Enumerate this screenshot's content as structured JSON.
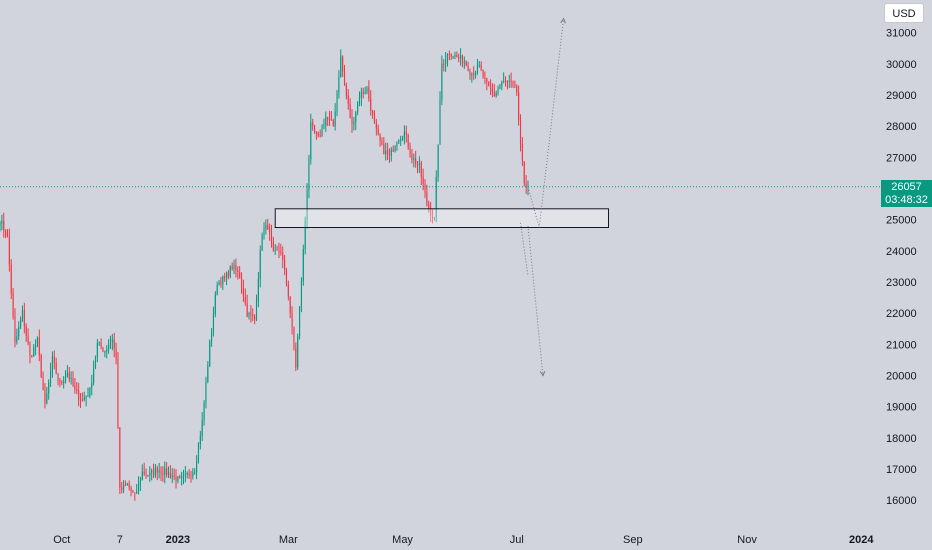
{
  "chart_data": {
    "type": "candlestick",
    "currency": "USD",
    "y_ticks": [
      31000,
      30000,
      29000,
      28000,
      27000,
      26000,
      25000,
      24000,
      23000,
      22000,
      21000,
      20000,
      19000,
      18000,
      17000,
      16000
    ],
    "y_range": [
      15300,
      32050
    ],
    "x_labels": [
      {
        "label": "Oct",
        "bold": false,
        "day": 33
      },
      {
        "label": "7",
        "bold": false,
        "day": 64
      },
      {
        "label": "2023",
        "bold": true,
        "day": 95
      },
      {
        "label": "Mar",
        "bold": false,
        "day": 154
      },
      {
        "label": "May",
        "bold": false,
        "day": 215
      },
      {
        "label": "Jul",
        "bold": false,
        "day": 276
      },
      {
        "label": "Sep",
        "bold": false,
        "day": 338
      },
      {
        "label": "Nov",
        "bold": false,
        "day": 399
      },
      {
        "label": "2024",
        "bold": true,
        "day": 460
      }
    ],
    "x_range": [
      0,
      470
    ],
    "last_price": {
      "value": 26057,
      "label": "26057",
      "countdown": "03:48:32"
    },
    "up_color": "#089981",
    "down_color": "#f23645",
    "key_points": [
      [
        0,
        25000
      ],
      [
        4,
        24400
      ],
      [
        8,
        21000
      ],
      [
        12,
        22000
      ],
      [
        16,
        20600
      ],
      [
        20,
        21100
      ],
      [
        24,
        19000
      ],
      [
        28,
        20500
      ],
      [
        32,
        19700
      ],
      [
        36,
        20100
      ],
      [
        40,
        19500
      ],
      [
        44,
        19200
      ],
      [
        48,
        19500
      ],
      [
        52,
        21000
      ],
      [
        56,
        20800
      ],
      [
        60,
        21200
      ],
      [
        62,
        20500
      ],
      [
        64,
        16300
      ],
      [
        68,
        16500
      ],
      [
        72,
        16100
      ],
      [
        76,
        16900
      ],
      [
        80,
        16800
      ],
      [
        84,
        17000
      ],
      [
        88,
        16900
      ],
      [
        92,
        16800
      ],
      [
        96,
        16600
      ],
      [
        100,
        16800
      ],
      [
        104,
        17000
      ],
      [
        108,
        18500
      ],
      [
        112,
        21000
      ],
      [
        116,
        23000
      ],
      [
        120,
        23100
      ],
      [
        124,
        23500
      ],
      [
        128,
        23200
      ],
      [
        132,
        22000
      ],
      [
        136,
        21800
      ],
      [
        140,
        24600
      ],
      [
        143,
        24800
      ],
      [
        146,
        23900
      ],
      [
        150,
        24000
      ],
      [
        154,
        22600
      ],
      [
        158,
        20300
      ],
      [
        162,
        24000
      ],
      [
        166,
        28000
      ],
      [
        170,
        27600
      ],
      [
        174,
        28300
      ],
      [
        178,
        28000
      ],
      [
        182,
        30200
      ],
      [
        184,
        29300
      ],
      [
        188,
        28000
      ],
      [
        192,
        29000
      ],
      [
        196,
        29200
      ],
      [
        200,
        28000
      ],
      [
        204,
        27300
      ],
      [
        208,
        27000
      ],
      [
        212,
        27600
      ],
      [
        216,
        27800
      ],
      [
        220,
        27000
      ],
      [
        224,
        26700
      ],
      [
        228,
        25500
      ],
      [
        232,
        25000
      ],
      [
        236,
        30000
      ],
      [
        240,
        30400
      ],
      [
        244,
        30200
      ],
      [
        248,
        30100
      ],
      [
        252,
        29700
      ],
      [
        256,
        29900
      ],
      [
        260,
        29300
      ],
      [
        264,
        29000
      ],
      [
        268,
        29400
      ],
      [
        272,
        29400
      ],
      [
        276,
        29100
      ],
      [
        278,
        27300
      ],
      [
        280,
        26200
      ],
      [
        282,
        26050
      ]
    ],
    "zone": {
      "day_start": 147,
      "day_end": 325,
      "price_low": 24750,
      "price_high": 25350
    },
    "projections": [
      {
        "style": "dotted",
        "arrow": true,
        "points": [
          [
            282,
            26050
          ],
          [
            288,
            24750
          ],
          [
            301,
            31450
          ]
        ]
      },
      {
        "style": "dotted",
        "arrow": true,
        "points": [
          [
            282,
            24800
          ],
          [
            290,
            20000
          ]
        ]
      },
      {
        "style": "dotted",
        "arrow": false,
        "points": [
          [
            278,
            24900
          ],
          [
            282,
            23200
          ]
        ]
      }
    ]
  }
}
